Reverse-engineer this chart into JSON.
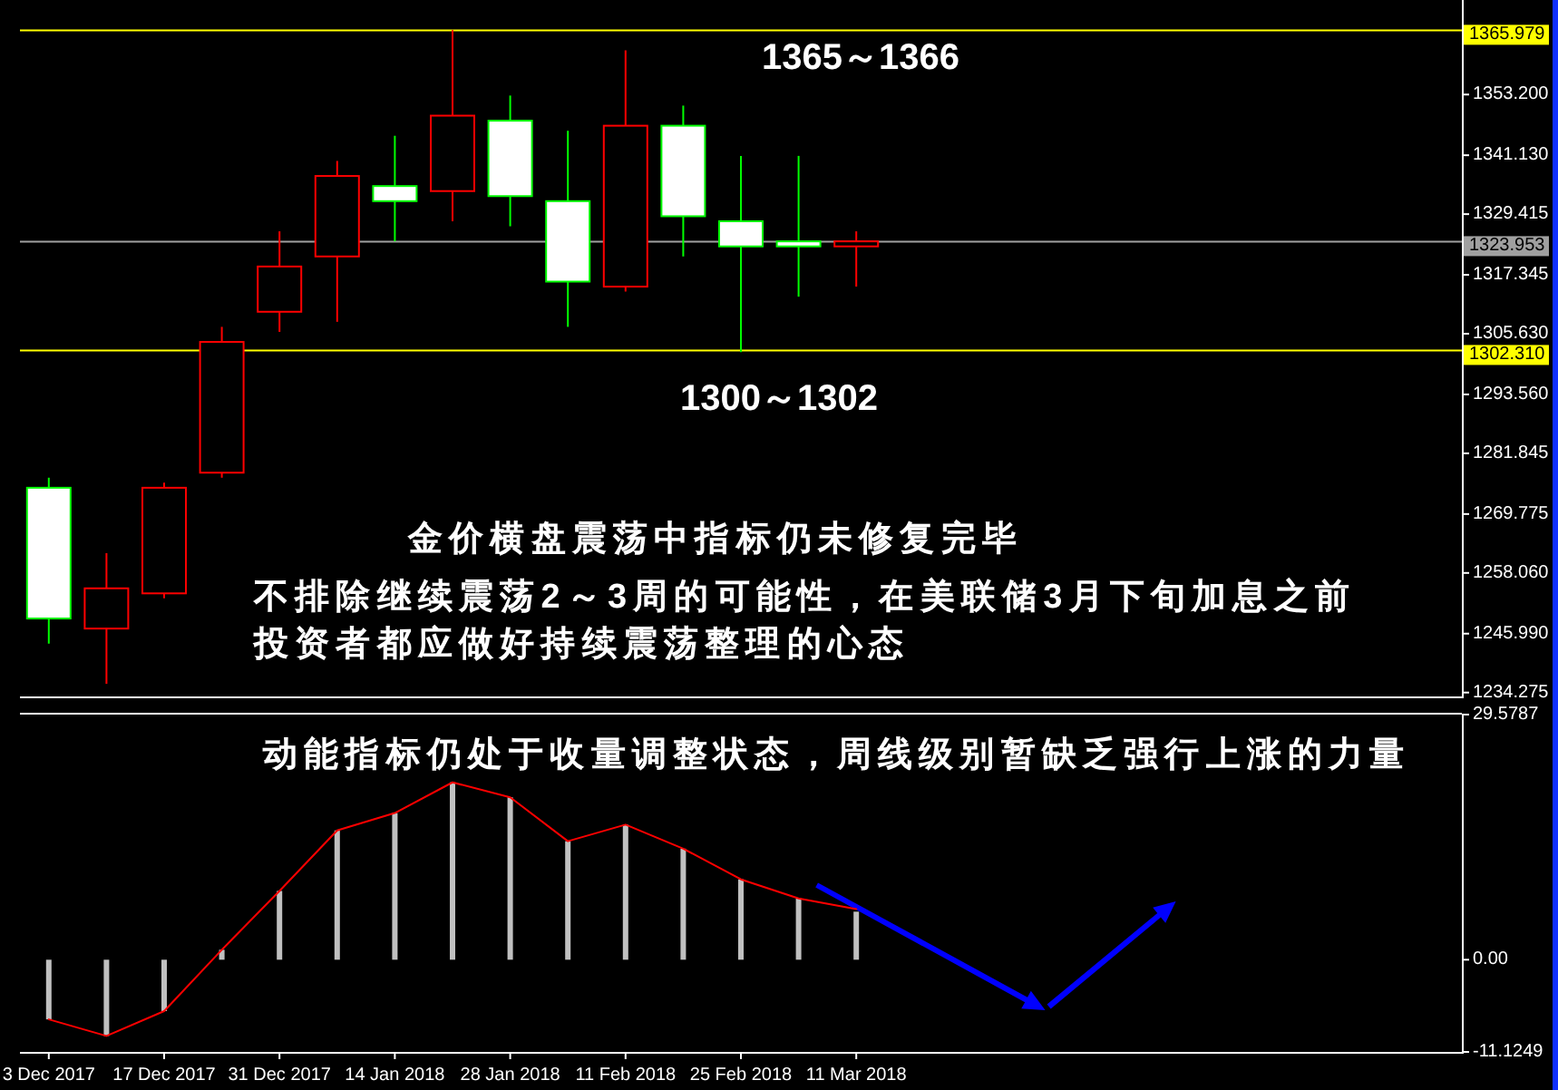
{
  "chart_data": [
    {
      "type": "candlestick",
      "categories": [
        null,
        null,
        null,
        null,
        null,
        null,
        null,
        null,
        null,
        null,
        null,
        null,
        null,
        null,
        null,
        null,
        null,
        null,
        null,
        null,
        null,
        null,
        null,
        null,
        null
      ],
      "ohlc": [
        [
          1275,
          1277,
          1244,
          1249
        ],
        [
          1247,
          1262,
          1236,
          1255
        ],
        [
          1254,
          1276,
          1253,
          1275
        ],
        [
          1278,
          1307,
          1277,
          1304
        ],
        [
          1310,
          1326,
          1306,
          1319
        ],
        [
          1321,
          1340,
          1308,
          1337
        ],
        [
          1335,
          1345,
          1324,
          1332
        ],
        [
          1334,
          1366,
          1328,
          1349
        ],
        [
          1348,
          1353,
          1327,
          1333
        ],
        [
          1332,
          1346,
          1307,
          1316
        ],
        [
          1315,
          1362,
          1314,
          1347
        ],
        [
          1347,
          1351,
          1321,
          1329
        ],
        [
          1328,
          1341,
          1302,
          1323
        ],
        [
          1324,
          1341,
          1313,
          1323
        ],
        [
          1323,
          1326,
          1315,
          1324
        ],
        null,
        null,
        null,
        null,
        null,
        null,
        null,
        null,
        null,
        null
      ],
      "colors": [
        "#00ff00",
        "#ff0000",
        "#ff0000",
        "#ff0000",
        "#ff0000",
        "#ff0000",
        "#00ff00",
        "#ff0000",
        "#00ff00",
        "#00ff00",
        "#ff0000",
        "#00ff00",
        "#00ff00",
        "#00ff00",
        "#ff0000",
        null,
        null,
        null,
        null,
        null,
        null,
        null,
        null,
        null,
        null
      ],
      "ylim": [
        1233.5,
        1372
      ],
      "yticks": [
        {
          "value": 1353.2,
          "label": "1353.200"
        },
        {
          "value": 1341.13,
          "label": "1341.130"
        },
        1329.415,
        1317.345,
        {
          "value": 1305.63,
          "label": "1305.630"
        },
        {
          "value": 1293.56,
          "label": "1293.560"
        },
        1281.845,
        1269.775,
        {
          "value": 1258.06,
          "label": "1258.060"
        },
        {
          "value": 1245.99,
          "label": "1245.990"
        },
        1234.275
      ],
      "ref_lines": [
        {
          "axis": "y",
          "value": 1365.979,
          "label": "1365.979",
          "color": "#ffff00"
        },
        {
          "axis": "y",
          "value": 1323.953,
          "label": "1323.953",
          "color": "#a0a0a0"
        },
        {
          "axis": "y",
          "value": 1302.31,
          "label": "1302.310",
          "color": "#ffff00"
        }
      ],
      "annotations": [
        "1365～1366",
        "1300～1302",
        "金价横盘震荡中指标仍未修复完毕",
        "不排除继续震荡2～3周的可能性，在美联储3月下旬加息之前",
        "投资者都应做好持续震荡整理的心态"
      ]
    },
    {
      "type": "bar",
      "categories": [
        "3 Dec 2017",
        null,
        "17 Dec 2017",
        null,
        "31 Dec 2017",
        null,
        "14 Jan 2018",
        null,
        "28 Jan 2018",
        null,
        "11 Feb 2018",
        null,
        "25 Feb 2018",
        null,
        "11 Mar 2018",
        null,
        null,
        null,
        null,
        null,
        null,
        null,
        null,
        null,
        null
      ],
      "series": [
        {
          "type": "bar",
          "color": "#c0c0c0",
          "values": [
            -7.2,
            -9.2,
            -6.2,
            1.2,
            8.3,
            15.6,
            17.7,
            21.4,
            19.6,
            14.3,
            16.3,
            13.4,
            9.7,
            7.4,
            5.8,
            null,
            null,
            null,
            null,
            null,
            null,
            null,
            null,
            null,
            null
          ]
        },
        {
          "type": "line",
          "color": "#ff0000",
          "values": [
            -7.2,
            -9.2,
            -6.2,
            1.2,
            8.3,
            15.6,
            17.7,
            21.4,
            19.6,
            14.3,
            16.3,
            13.4,
            9.7,
            7.4,
            6.1,
            null,
            null,
            null,
            null,
            null,
            null,
            null,
            null,
            null,
            null
          ]
        }
      ],
      "ylim": [
        -11.1249,
        29.5787
      ],
      "yticks": [
        29.5787,
        {
          "value": 0,
          "label": "0.00"
        },
        -11.1249
      ],
      "annotations": [
        "动能指标仍处于收量调整状态，周线级别暂缺乏强行上涨的力量"
      ]
    }
  ]
}
